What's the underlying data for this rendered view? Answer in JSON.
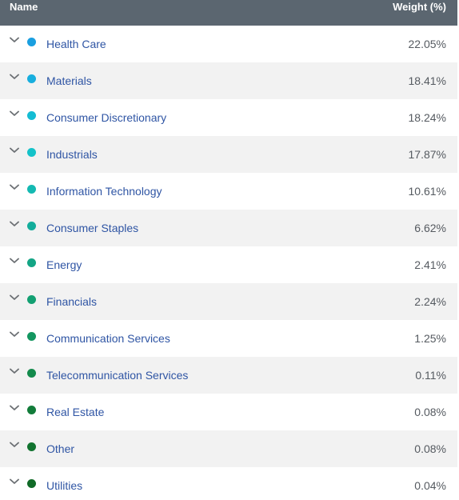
{
  "header": {
    "name_label": "Name",
    "weight_label": "Weight (%)"
  },
  "rows": [
    {
      "name": "Health Care",
      "weight": "22.05%",
      "color": "#1a9fe0"
    },
    {
      "name": "Materials",
      "weight": "18.41%",
      "color": "#17aede"
    },
    {
      "name": "Consumer Discretionary",
      "weight": "18.24%",
      "color": "#15bcd3"
    },
    {
      "name": "Industrials",
      "weight": "17.87%",
      "color": "#14c2c9"
    },
    {
      "name": "Information Technology",
      "weight": "10.61%",
      "color": "#14b9b2"
    },
    {
      "name": "Consumer Staples",
      "weight": "6.62%",
      "color": "#13ad9b"
    },
    {
      "name": "Energy",
      "weight": "2.41%",
      "color": "#14a585"
    },
    {
      "name": "Financials",
      "weight": "2.24%",
      "color": "#13a072"
    },
    {
      "name": "Communication Services",
      "weight": "1.25%",
      "color": "#139660"
    },
    {
      "name": "Telecommunication Services",
      "weight": "0.11%",
      "color": "#138a4c"
    },
    {
      "name": "Real Estate",
      "weight": "0.08%",
      "color": "#127c3a"
    },
    {
      "name": "Other",
      "weight": "0.08%",
      "color": "#11732f"
    },
    {
      "name": "Utilities",
      "weight": "0.04%",
      "color": "#106a27"
    }
  ],
  "icons": {
    "expand": "chevron-down-icon",
    "bullet": "color-dot-icon"
  }
}
